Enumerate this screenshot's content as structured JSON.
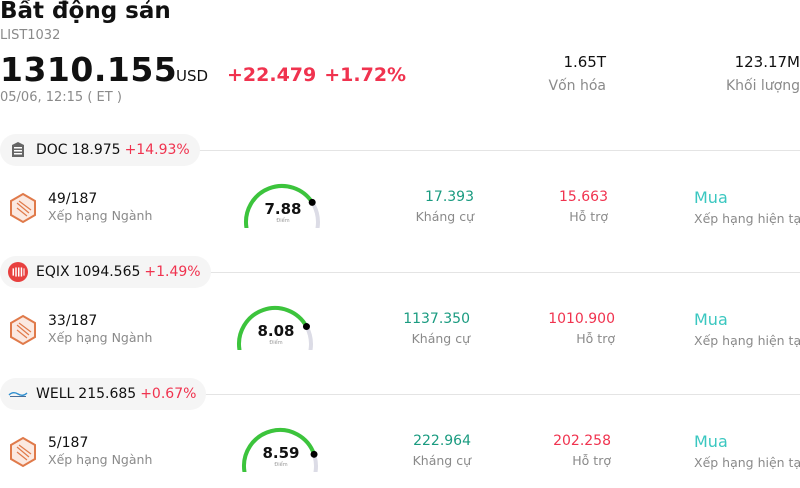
{
  "header": {
    "title": "Bất động sản",
    "code": "LIST1032",
    "price": "1310.155",
    "currency": "USD",
    "change_abs": "+22.479",
    "change_pct": "+1.72%",
    "timestamp": "05/06, 12:15  ( ET )",
    "market_cap_value": "1.65T",
    "market_cap_label": "Vốn hóa",
    "volume_value": "123.17M",
    "volume_label": "Khối lượng"
  },
  "colors": {
    "up_red": "#f0334f",
    "resistance_green": "#1a9b80",
    "recommend_teal": "#3ac7c0",
    "gauge_green": "#3cc43c"
  },
  "stocks": [
    {
      "ticker": "DOC",
      "price": "18.975",
      "change_pct": "+14.93%",
      "logo_icon": "doc-building-icon",
      "rank": "49/187",
      "rank_label": "Xếp hạng Ngành",
      "score": "7.88",
      "score_label": "Điểm",
      "score_fraction": 0.788,
      "resistance": "17.393",
      "resistance_label": "Kháng cự",
      "support": "15.663",
      "support_label": "Hỗ trợ",
      "recommendation": "Mua",
      "recommendation_label": "Xếp hạng hiện tại"
    },
    {
      "ticker": "EQIX",
      "price": "1094.565",
      "change_pct": "+1.49%",
      "logo_icon": "equinix-logo-icon",
      "rank": "33/187",
      "rank_label": "Xếp hạng Ngành",
      "score": "8.08",
      "score_label": "Điểm",
      "score_fraction": 0.808,
      "resistance": "1137.350",
      "resistance_label": "Kháng cự",
      "support": "1010.900",
      "support_label": "Hỗ trợ",
      "recommendation": "Mua",
      "recommendation_label": "Xếp hạng hiện tại"
    },
    {
      "ticker": "WELL",
      "price": "215.685",
      "change_pct": "+0.67%",
      "logo_icon": "welltower-logo-icon",
      "rank": "5/187",
      "rank_label": "Xếp hạng Ngành",
      "score": "8.59",
      "score_label": "Điểm",
      "score_fraction": 0.859,
      "resistance": "222.964",
      "resistance_label": "Kháng cự",
      "support": "202.258",
      "support_label": "Hỗ trợ",
      "recommendation": "Mua",
      "recommendation_label": "Xếp hạng hiện tại"
    }
  ]
}
